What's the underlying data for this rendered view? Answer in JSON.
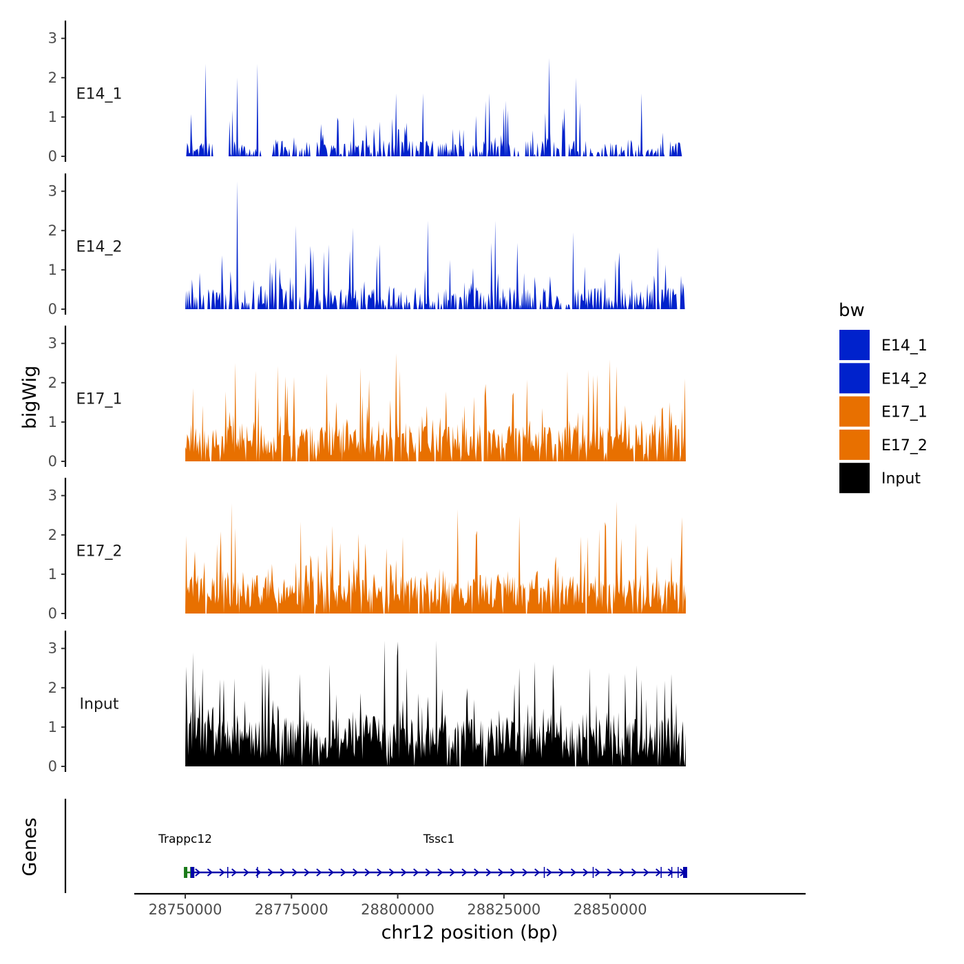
{
  "chart_data": {
    "type": "area",
    "xlabel": "chr12 position (bp)",
    "ylabel": "bigWig",
    "genes_panel_label": "Genes",
    "x_range": [
      28738000,
      28896000
    ],
    "x_ticks": [
      28750000,
      28775000,
      28800000,
      28825000,
      28850000
    ],
    "x_tick_labels": [
      "28750000",
      "28775000",
      "28800000",
      "28825000",
      "28850000"
    ],
    "y_range": [
      0,
      3.4
    ],
    "y_ticks": [
      0,
      1,
      2,
      3
    ],
    "y_tick_labels": [
      "0",
      "1",
      "2",
      "3"
    ],
    "data_x_start": 28750000,
    "data_x_end": 28867800,
    "legend": {
      "title": "bw",
      "position": "right",
      "entries": [
        {
          "label": "E14_1",
          "color": "#0022CC"
        },
        {
          "label": "E14_2",
          "color": "#0022CC"
        },
        {
          "label": "E17_1",
          "color": "#E87000"
        },
        {
          "label": "E17_2",
          "color": "#E87000"
        },
        {
          "label": "Input",
          "color": "#000000"
        }
      ]
    },
    "series": [
      {
        "name": "E14_1",
        "color": "#0022CC",
        "base": 0.3,
        "noise": 0.45,
        "zero_frac": 0.45,
        "peaks": [
          [
            28754800,
            2.35
          ],
          [
            28762200,
            2.0
          ],
          [
            28767000,
            2.35
          ],
          [
            28799600,
            1.6
          ],
          [
            28806000,
            1.6
          ],
          [
            28821600,
            1.6
          ],
          [
            28835600,
            2.5
          ],
          [
            28842000,
            2.0
          ],
          [
            28857400,
            1.6
          ]
        ],
        "gaps": [
          [
            28750000,
            28750300
          ],
          [
            28757000,
            28760200
          ],
          [
            28768200,
            28770300
          ],
          [
            28771800,
            28772400
          ],
          [
            28779300,
            28780500
          ],
          [
            28803600,
            28804200
          ],
          [
            28808400,
            28809000
          ],
          [
            28816200,
            28816800
          ],
          [
            28826400,
            28827000
          ],
          [
            28860000,
            28860300
          ],
          [
            28863000,
            28864000
          ],
          [
            28866800,
            28867800
          ]
        ]
      },
      {
        "name": "E14_2",
        "color": "#0022CC",
        "base": 0.4,
        "noise": 0.55,
        "zero_frac": 0.4,
        "peaks": [
          [
            28762200,
            3.25
          ],
          [
            28780200,
            1.5
          ],
          [
            28795800,
            1.65
          ],
          [
            28807000,
            2.25
          ],
          [
            28823000,
            2.25
          ]
        ],
        "gaps": [
          [
            28754500,
            28755000
          ],
          [
            28762700,
            28763200
          ],
          [
            28765000,
            28765400
          ],
          [
            28777300,
            28777800
          ],
          [
            28791000,
            28791400
          ],
          [
            28806000,
            28806400
          ],
          [
            28818000,
            28818300
          ],
          [
            28842000,
            28842300
          ]
        ]
      },
      {
        "name": "E17_1",
        "color": "#E87000",
        "base": 0.7,
        "noise": 0.6,
        "zero_frac": 0.1,
        "peaks": [
          [
            28761800,
            2.5
          ],
          [
            28766600,
            2.3
          ],
          [
            28799500,
            2.75
          ],
          [
            28840000,
            2.3
          ],
          [
            28847000,
            2.2
          ]
        ],
        "gaps": [
          [
            28772500,
            28772900
          ],
          [
            28780600,
            28781000
          ],
          [
            28786800,
            28787100
          ],
          [
            28820000,
            28820300
          ]
        ]
      },
      {
        "name": "E17_2",
        "color": "#E87000",
        "base": 0.7,
        "noise": 0.6,
        "zero_frac": 0.1,
        "peaks": [
          [
            28760900,
            2.8
          ],
          [
            28801200,
            1.95
          ],
          [
            28851600,
            2.85
          ],
          [
            28866800,
            2.45
          ]
        ],
        "gaps": [
          [
            28754800,
            28755200
          ],
          [
            28780200,
            28780700
          ],
          [
            28804800,
            28805200
          ],
          [
            28844200,
            28844600
          ],
          [
            28850200,
            28850600
          ],
          [
            28865800,
            28866200
          ]
        ]
      },
      {
        "name": "Input",
        "color": "#000000",
        "base": 0.9,
        "noise": 0.7,
        "zero_frac": 0.05,
        "peaks": [
          [
            28754000,
            2.5
          ],
          [
            28768200,
            2.6
          ],
          [
            28768800,
            2.5
          ],
          [
            28802000,
            2.5
          ],
          [
            28827400,
            2.1
          ],
          [
            28836600,
            2.6
          ],
          [
            28845200,
            2.5
          ],
          [
            28853600,
            2.35
          ],
          [
            28864400,
            2.35
          ]
        ],
        "gaps": [
          [
            28773000,
            28773300
          ],
          [
            28781300,
            28781700
          ],
          [
            28820200,
            28820500
          ]
        ]
      }
    ],
    "genes": [
      {
        "name": "Trappc12",
        "start": 28750000,
        "end": 28751800,
        "strand": "+",
        "color": "#1a7a1a"
      },
      {
        "name": "Tssc1",
        "start": 28751600,
        "end": 28867800,
        "strand": "+",
        "color": "#0000AA"
      }
    ]
  }
}
